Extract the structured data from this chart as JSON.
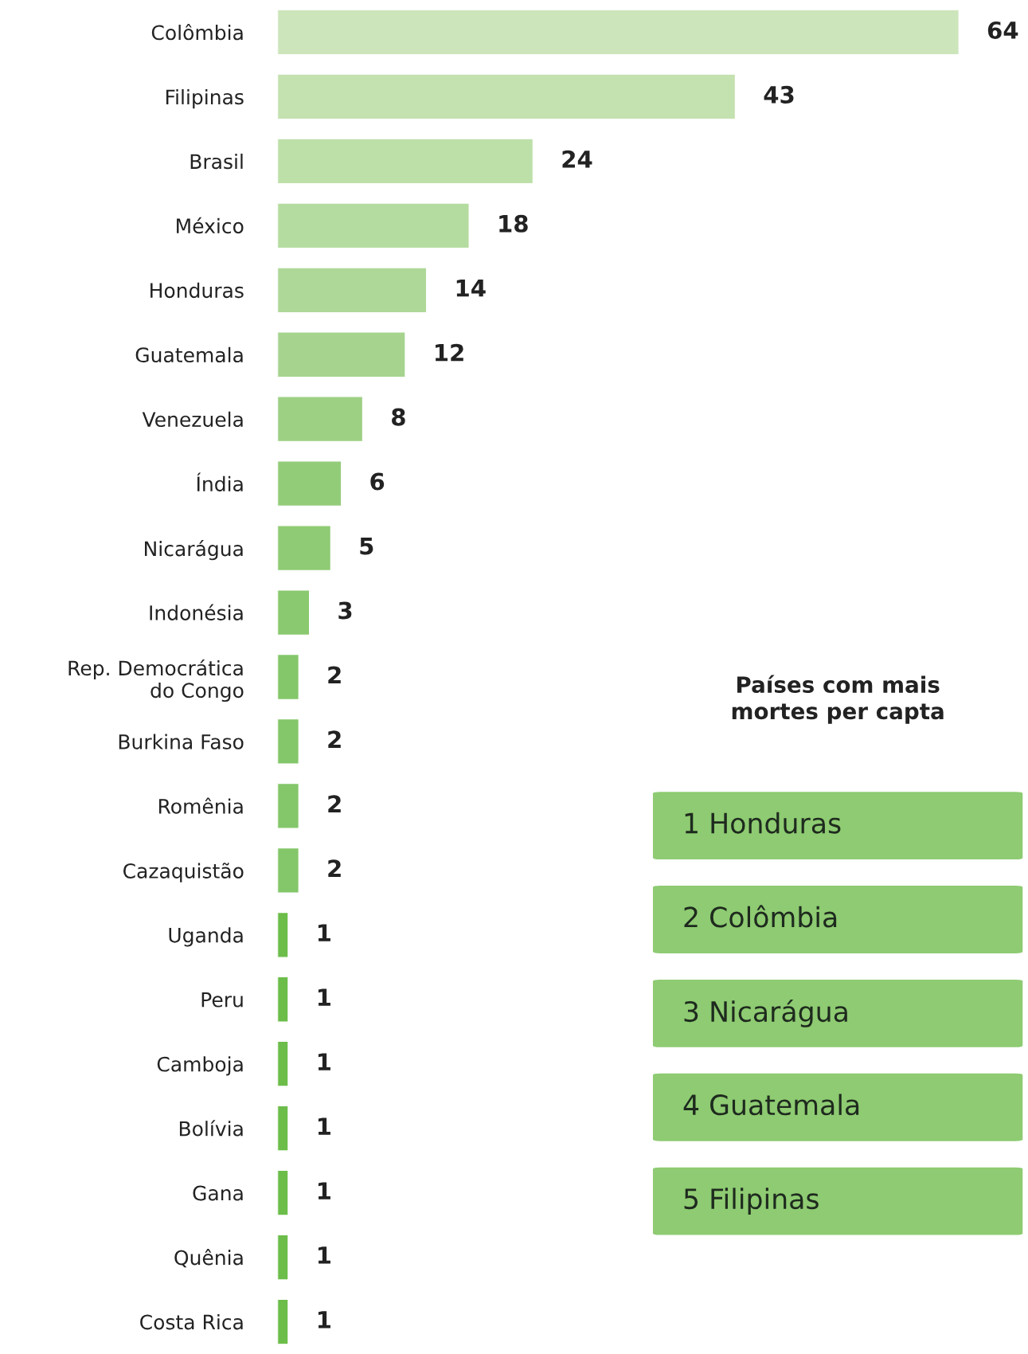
{
  "chart_data": [
    {
      "type": "bar",
      "orientation": "horizontal",
      "categories": [
        "Colômbia",
        "Filipinas",
        "Brasil",
        "México",
        "Honduras",
        "Guatemala",
        "Venezuela",
        "Índia",
        "Nicarágua",
        "Indonésia",
        "Rep. Democrática\ndo Congo",
        "Burkina Faso",
        "Romênia",
        "Cazaquistão",
        "Uganda",
        "Peru",
        "Camboja",
        "Bolívia",
        "Gana",
        "Quênia",
        "Costa Rica"
      ],
      "values": [
        64,
        43,
        24,
        18,
        14,
        12,
        8,
        6,
        5,
        3,
        2,
        2,
        2,
        2,
        1,
        1,
        1,
        1,
        1,
        1,
        1
      ],
      "colors": [
        "#cce5bb",
        "#c4e1b0",
        "#bde0a9",
        "#b5dca0",
        "#aed898",
        "#a6d48f",
        "#9dd083",
        "#93cc79",
        "#8fcb74",
        "#8ac96f",
        "#84c76a",
        "#84c76a",
        "#84c76a",
        "#84c76a",
        "#6cbd4a",
        "#6cbd4a",
        "#6cbd4a",
        "#6cbd4a",
        "#6cbd4a",
        "#6cbd4a",
        "#6cbd4a"
      ],
      "xlim": [
        0,
        70
      ],
      "data_labels": true,
      "tick_labels": "y",
      "grid": false,
      "legend": false
    },
    {
      "type": "other",
      "title": "Países com mais\nmortes per capta",
      "annotations": [
        "1 Honduras",
        "2 Colômbia",
        "3 Nicarágua",
        "4 Guatemala",
        "5 Filipinas"
      ]
    }
  ]
}
